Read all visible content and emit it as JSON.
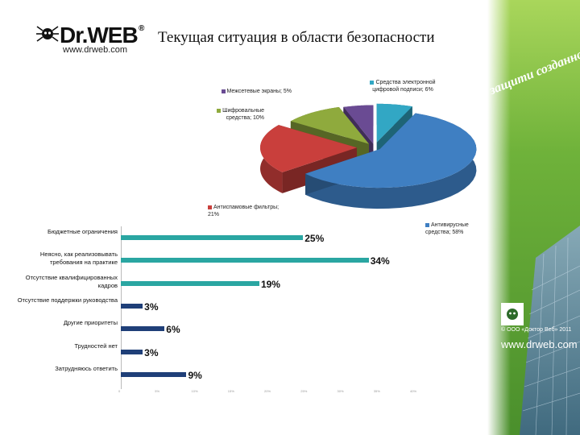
{
  "header": {
    "logo_text": "Dr.WEB",
    "logo_registered": "®",
    "logo_url": "www.drweb.com",
    "title": "Текущая ситуация в области безопасности"
  },
  "branding": {
    "slogan": "защити созданное",
    "copyright": "© ООО «Доктор Веб» 2011",
    "footer_url": "www.drweb.com"
  },
  "colors": {
    "bar_teal": "#2aa6a2",
    "bar_navy": "#1f3f78",
    "pie_antivirus": "#3f7fc2",
    "pie_antispam": "#c93f3c",
    "pie_encryption": "#8faa3d",
    "pie_firewalls": "#6a4b93",
    "pie_signature": "#32a7c4",
    "green_panel": "#8cc63f"
  },
  "chart_data": [
    {
      "type": "pie",
      "style": "3d-exploded",
      "slices": [
        {
          "label": "Антивирусные средства; 58%",
          "value": 58,
          "color": "#3f7fc2"
        },
        {
          "label": "Антиспамовые фильтры; 21%",
          "value": 21,
          "color": "#c93f3c"
        },
        {
          "label": "Шифровальные средства; 10%",
          "value": 10,
          "color": "#8faa3d"
        },
        {
          "label": "Межсетевые экраны; 5%",
          "value": 5,
          "color": "#6a4b93"
        },
        {
          "label": "Средства электронной цифровой подписи; 6%",
          "value": 6,
          "color": "#32a7c4"
        }
      ]
    },
    {
      "type": "bar",
      "orientation": "horizontal",
      "categories": [
        "Бюджетные ограничения",
        "Неясно, как реализовывать требования на практике",
        "Отсутствие квалифицированных кадров",
        "Отсутствие поддержки руководства",
        "Другие приоритеты",
        "Трудностей нет",
        "Затрудняюсь ответить"
      ],
      "values": [
        25,
        34,
        19,
        3,
        6,
        3,
        9
      ],
      "value_labels": [
        "25%",
        "34%",
        "19%",
        "3%",
        "6%",
        "3%",
        "9%"
      ],
      "colors": [
        "#2aa6a2",
        "#2aa6a2",
        "#2aa6a2",
        "#1f3f78",
        "#1f3f78",
        "#1f3f78",
        "#1f3f78"
      ],
      "xlim": [
        0,
        40
      ],
      "x_ticks": [
        "0",
        "5%",
        "10%",
        "15%",
        "20%",
        "25%",
        "30%",
        "35%",
        "40%"
      ],
      "grid": false
    }
  ]
}
